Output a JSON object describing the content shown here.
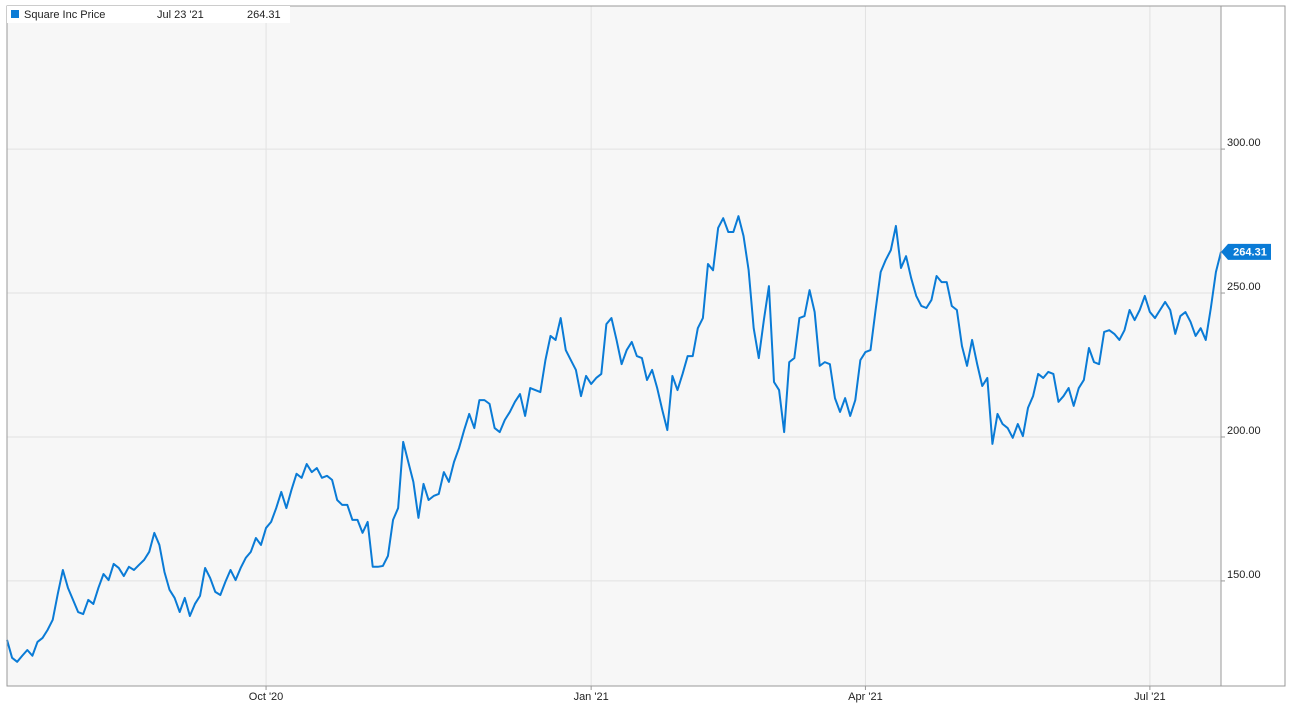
{
  "chart_data": {
    "type": "line",
    "legend_date": "Jul 23 '21",
    "series": [
      {
        "name": "Square Inc Price",
        "color": "#0a7bd6",
        "values": [
          129.5,
          123.3,
          121.9,
          124,
          126,
          124,
          128.8,
          130.2,
          133,
          136.5,
          145.5,
          153.8,
          147.6,
          143.4,
          139.2,
          138.5,
          143.4,
          142,
          147.6,
          152.4,
          150.3,
          155.9,
          154.5,
          151.7,
          154.9,
          153.8,
          155.6,
          157.3,
          160.1,
          166.7,
          162.5,
          153.1,
          146.9,
          144.1,
          139.2,
          144.1,
          137.8,
          142,
          144.8,
          154.5,
          151,
          146.2,
          145.1,
          149.7,
          153.8,
          150.3,
          154.5,
          158,
          160.1,
          164.9,
          162.5,
          168.4,
          170.5,
          175.3,
          180.9,
          175.3,
          181.6,
          187.2,
          185.8,
          190.6,
          187.8,
          189.2,
          185.8,
          186.5,
          185.1,
          178.1,
          176.4,
          176.4,
          171.2,
          171.2,
          166.7,
          170.5,
          154.9,
          154.9,
          155.2,
          158.7,
          171.2,
          175.3,
          198.3,
          191.3,
          184.4,
          171.9,
          183.7,
          178.1,
          179.5,
          180.2,
          187.8,
          184.4,
          191.3,
          196.2,
          202.4,
          208,
          203.1,
          212.8,
          212.8,
          211.5,
          203.1,
          201.7,
          205.9,
          208.7,
          212.2,
          214.9,
          207.3,
          217,
          216.3,
          215.6,
          226.7,
          235.1,
          233.7,
          241.3,
          230.2,
          226.7,
          223.3,
          214.2,
          221.2,
          218.4,
          220.5,
          221.9,
          239.2,
          241.3,
          233.7,
          225.3,
          230.2,
          233,
          228.1,
          227.4,
          219.8,
          223.3,
          217,
          209.4,
          202.4,
          221.2,
          216.3,
          221.9,
          228.1,
          228.1,
          237.8,
          241.3,
          260.1,
          257.9,
          272.6,
          276,
          271.2,
          271.2,
          276.7,
          269.8,
          258,
          237.8,
          227.4,
          240.6,
          252.4,
          219.1,
          216.3,
          201.7,
          226,
          227.4,
          241.3,
          242,
          251,
          243.4,
          224.7,
          226,
          225.3,
          213.5,
          208.7,
          213.5,
          207.3,
          212.8,
          226.7,
          229.5,
          230.2,
          244.1,
          257.3,
          261.5,
          264.9,
          273.3,
          258.7,
          262.8,
          255.2,
          249,
          245.5,
          244.8,
          247.6,
          255.9,
          253.8,
          253.8,
          245.5,
          244.1,
          231.6,
          224.7,
          233.7,
          225.3,
          217.7,
          220.5,
          197.6,
          208,
          204.5,
          203.1,
          199.7,
          204.5,
          200.3,
          210.1,
          214.2,
          221.9,
          220.5,
          222.6,
          221.9,
          212.2,
          214.2,
          217,
          210.8,
          217,
          219.8,
          230.9,
          226,
          225.3,
          236.5,
          237.1,
          235.8,
          233.7,
          237.1,
          244.1,
          240.6,
          244.1,
          249,
          243.4,
          241.3,
          244.1,
          246.9,
          244.1,
          235.8,
          242,
          243.4,
          240,
          235.1,
          237.8,
          233.7,
          244.8,
          257.3,
          264.31
        ]
      }
    ],
    "categories": [
      null,
      null,
      null,
      null,
      null,
      null,
      null,
      null,
      null,
      null,
      null,
      null,
      null,
      null,
      null,
      null,
      null,
      null,
      null,
      null,
      null,
      null,
      null,
      null,
      null,
      null,
      null,
      null,
      null,
      null,
      null,
      null,
      null,
      null,
      null,
      null,
      null,
      null,
      null,
      null,
      null,
      null,
      null,
      null,
      null,
      null,
      null,
      null,
      null,
      null,
      null,
      "Oct '20",
      null,
      null,
      null,
      null,
      null,
      null,
      null,
      null,
      null,
      null,
      null,
      null,
      null,
      null,
      null,
      null,
      null,
      null,
      null,
      null,
      null,
      null,
      null,
      null,
      null,
      null,
      null,
      null,
      null,
      null,
      null,
      null,
      null,
      null,
      null,
      null,
      null,
      null,
      null,
      null,
      null,
      null,
      null,
      null,
      null,
      null,
      null,
      null,
      null,
      null,
      null,
      null,
      null,
      null,
      null,
      null,
      null,
      null,
      null,
      null,
      null,
      null,
      null,
      "Jan '21",
      null,
      null,
      null,
      null,
      null,
      null,
      null,
      null,
      null,
      null,
      null,
      null,
      null,
      null,
      null,
      null,
      null,
      null,
      null,
      null,
      null,
      null,
      null,
      null,
      null,
      null,
      null,
      null,
      null,
      null,
      null,
      null,
      null,
      null,
      null,
      null,
      null,
      null,
      null,
      null,
      null,
      null,
      null,
      null,
      null,
      null,
      null,
      null,
      null,
      null,
      null,
      null,
      null,
      "Apr '21",
      null,
      null,
      null,
      null,
      null,
      null,
      null,
      null,
      null,
      null,
      null,
      null,
      null,
      null,
      null,
      null,
      null,
      null,
      null,
      null,
      null,
      null,
      null,
      null,
      null,
      null,
      null,
      null,
      null,
      null,
      null,
      null,
      null,
      null,
      null,
      null,
      null,
      null,
      null,
      null,
      null,
      null,
      null,
      null,
      null,
      null,
      null,
      null,
      null,
      null,
      null,
      null,
      null,
      null,
      null,
      "Jul '21",
      null,
      null,
      null,
      null,
      null,
      null,
      null,
      null,
      null,
      null,
      null,
      null,
      null,
      null
    ],
    "ylim": [
      113.5,
      349.7
    ],
    "yticks": [
      {
        "value": 150,
        "label": "150.00"
      },
      {
        "value": 200,
        "label": "200.00"
      },
      {
        "value": 250,
        "label": "250.00"
      },
      {
        "value": 300,
        "label": "300.00"
      }
    ],
    "grid": true
  }
}
